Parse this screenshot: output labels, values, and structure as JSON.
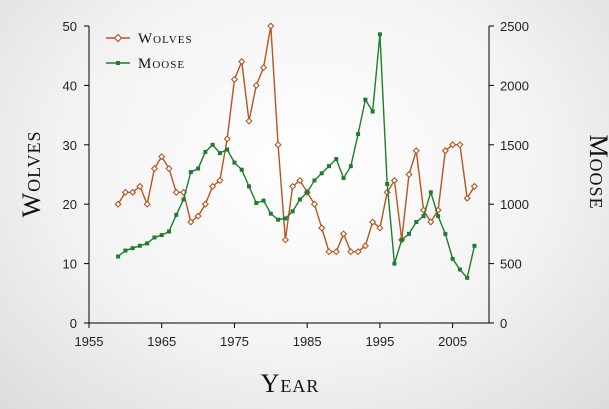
{
  "chart_data": {
    "type": "line",
    "x_axis": {
      "label": "Year",
      "range": [
        1955,
        2010
      ],
      "ticks": [
        1955,
        1965,
        1975,
        1985,
        1995,
        2005
      ]
    },
    "y_left": {
      "label": "Wolves",
      "range": [
        0,
        50
      ],
      "ticks": [
        0,
        10,
        20,
        30,
        40,
        50
      ]
    },
    "y_right": {
      "label": "Moose",
      "range": [
        0,
        2500
      ],
      "ticks": [
        0,
        500,
        1000,
        1500,
        2000,
        2500
      ]
    },
    "legend_position": "top-left",
    "grid": false,
    "series": [
      {
        "name": "Wolves",
        "axis": "left",
        "color": "#b5561e",
        "marker": "diamond-open",
        "x": [
          1959,
          1960,
          1961,
          1962,
          1963,
          1964,
          1965,
          1966,
          1967,
          1968,
          1969,
          1970,
          1971,
          1972,
          1973,
          1974,
          1975,
          1976,
          1977,
          1978,
          1979,
          1980,
          1981,
          1982,
          1983,
          1984,
          1985,
          1986,
          1987,
          1988,
          1989,
          1990,
          1991,
          1992,
          1993,
          1994,
          1995,
          1996,
          1997,
          1998,
          1999,
          2000,
          2001,
          2002,
          2003,
          2004,
          2005,
          2006,
          2007,
          2008
        ],
        "y": [
          20,
          22,
          22,
          23,
          20,
          26,
          28,
          26,
          22,
          22,
          17,
          18,
          20,
          23,
          24,
          31,
          41,
          44,
          34,
          40,
          43,
          50,
          30,
          14,
          23,
          24,
          22,
          20,
          16,
          12,
          12,
          15,
          12,
          12,
          13,
          17,
          16,
          22,
          24,
          14,
          25,
          29,
          19,
          17,
          19,
          29,
          30,
          30,
          21,
          23
        ]
      },
      {
        "name": "Moose",
        "axis": "right",
        "color": "#1e7d2c",
        "marker": "square-filled",
        "x": [
          1959,
          1960,
          1961,
          1962,
          1963,
          1964,
          1965,
          1966,
          1967,
          1968,
          1969,
          1970,
          1971,
          1972,
          1973,
          1974,
          1975,
          1976,
          1977,
          1978,
          1979,
          1980,
          1981,
          1982,
          1983,
          1984,
          1985,
          1986,
          1987,
          1988,
          1989,
          1990,
          1991,
          1992,
          1993,
          1994,
          1995,
          1996,
          1997,
          1998,
          1999,
          2000,
          2001,
          2002,
          2003,
          2004,
          2005,
          2006,
          2007,
          2008
        ],
        "y": [
          560,
          610,
          630,
          650,
          670,
          720,
          740,
          770,
          910,
          1040,
          1270,
          1300,
          1440,
          1500,
          1430,
          1460,
          1350,
          1290,
          1150,
          1010,
          1030,
          920,
          870,
          880,
          940,
          1040,
          1100,
          1200,
          1260,
          1320,
          1380,
          1220,
          1320,
          1590,
          1880,
          1780,
          2430,
          1170,
          500,
          700,
          750,
          850,
          900,
          1100,
          900,
          750,
          540,
          450,
          380,
          650
        ]
      }
    ]
  }
}
